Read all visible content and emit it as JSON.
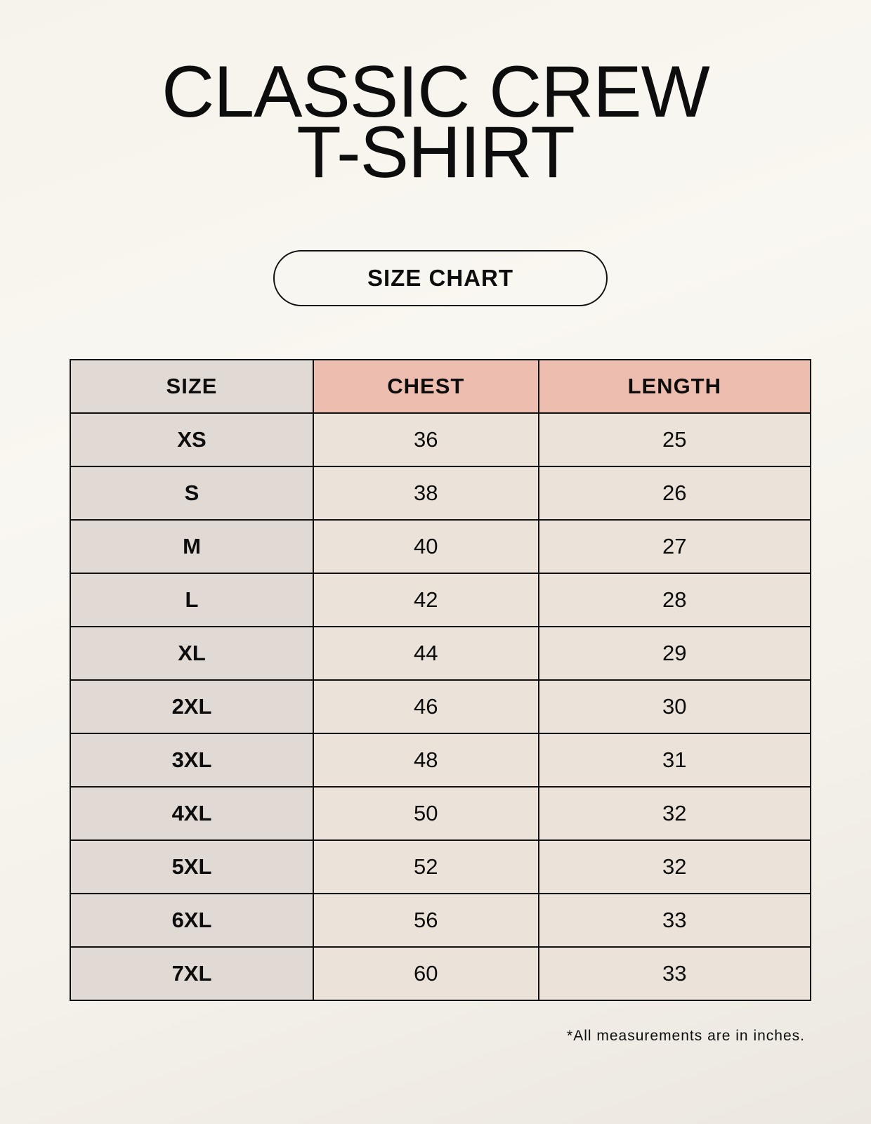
{
  "title_line1": "CLASSIC CREW",
  "title_line2": "T-SHIRT",
  "subtitle": "SIZE CHART",
  "table": {
    "headers": [
      "SIZE",
      "CHEST",
      "LENGTH"
    ],
    "rows": [
      [
        "XS",
        "36",
        "25"
      ],
      [
        "S",
        "38",
        "26"
      ],
      [
        "M",
        "40",
        "27"
      ],
      [
        "L",
        "42",
        "28"
      ],
      [
        "XL",
        "44",
        "29"
      ],
      [
        "2XL",
        "46",
        "30"
      ],
      [
        "3XL",
        "48",
        "31"
      ],
      [
        "4XL",
        "50",
        "32"
      ],
      [
        "5XL",
        "52",
        "32"
      ],
      [
        "6XL",
        "56",
        "33"
      ],
      [
        "7XL",
        "60",
        "33"
      ]
    ]
  },
  "footnote": "*All measurements are in inches.",
  "colors": {
    "header_accent": "#edbdb0",
    "size_column": "#e1d9d3",
    "value_cells": "#ebe3d9"
  }
}
